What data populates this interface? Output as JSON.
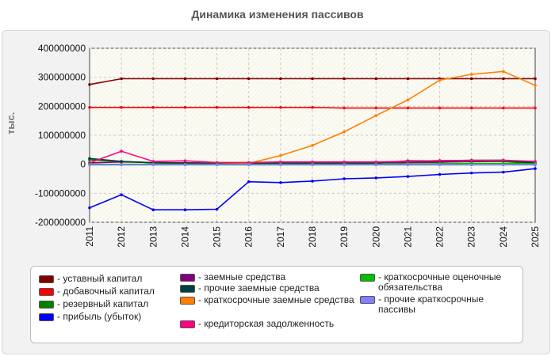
{
  "chart_data": {
    "type": "line",
    "title": "Динамика изменения пассивов",
    "ylabel": "тыс.",
    "xlabel": "",
    "x": [
      "2011",
      "2012",
      "2013",
      "2014",
      "2015",
      "2016",
      "2017",
      "2018",
      "2019",
      "2020",
      "2021",
      "2022",
      "2023",
      "2024",
      "2025"
    ],
    "ylim": [
      -200000000,
      400000000
    ],
    "yticks": [
      400000000,
      300000000,
      200000000,
      100000000,
      0,
      -100000000,
      -200000000
    ],
    "ytick_labels": [
      "400000000",
      "300000000",
      "200000000",
      "100000000",
      "0",
      "-100000000",
      "-200000000"
    ],
    "grid": true,
    "legend_position": "bottom",
    "series": [
      {
        "name": "- уставный капитал",
        "color": "#800000",
        "values": [
          275000000,
          295000000,
          295000000,
          295000000,
          295000000,
          295000000,
          295000000,
          295000000,
          295000000,
          295000000,
          295000000,
          295000000,
          295000000,
          295000000,
          295000000
        ]
      },
      {
        "name": "- добавочный капитал",
        "color": "#ff0000",
        "values": [
          196000000,
          196000000,
          196000000,
          196000000,
          196000000,
          196000000,
          196000000,
          196000000,
          194000000,
          194000000,
          194000000,
          194000000,
          194000000,
          194000000,
          194000000
        ]
      },
      {
        "name": "- резервный капитал",
        "color": "#008000",
        "values": [
          15000000,
          10000000,
          5000000,
          5000000,
          4000000,
          4000000,
          5000000,
          5000000,
          5000000,
          6000000,
          8000000,
          8000000,
          9000000,
          10000000,
          2000000
        ]
      },
      {
        "name": "- прибыль (убыток)",
        "color": "#0000ff",
        "values": [
          -150000000,
          -105000000,
          -157000000,
          -157000000,
          -155000000,
          -60000000,
          -63000000,
          -58000000,
          -50000000,
          -47000000,
          -42000000,
          -35000000,
          -30000000,
          -27000000,
          -15000000
        ]
      },
      {
        "name": "- заемные средства",
        "color": "#800080",
        "values": [
          5000000,
          8000000,
          6000000,
          5000000,
          4000000,
          3000000,
          4000000,
          5000000,
          5000000,
          5000000,
          6000000,
          7000000,
          10000000,
          12000000,
          8000000
        ]
      },
      {
        "name": "- прочие заемные средства",
        "color": "#004040",
        "values": [
          20000000,
          10000000,
          5000000,
          3000000,
          2000000,
          2000000,
          3000000,
          3000000,
          3000000,
          3000000,
          12000000,
          12000000,
          14000000,
          14000000,
          4000000
        ]
      },
      {
        "name": "- краткосрочные заемные средства",
        "color": "#ff8000",
        "values": [
          0,
          0,
          0,
          0,
          0,
          3000000,
          30000000,
          65000000,
          112000000,
          168000000,
          222000000,
          290000000,
          310000000,
          320000000,
          272000000
        ]
      },
      {
        "name": "- кредиторская задолженность",
        "color": "#ff0080",
        "values": [
          5000000,
          45000000,
          10000000,
          12000000,
          6000000,
          6000000,
          8000000,
          8000000,
          8000000,
          8000000,
          10000000,
          13000000,
          13000000,
          14000000,
          10000000
        ]
      },
      {
        "name": "- краткосрочные оценочные обязательства",
        "color": "#00c000",
        "values": [
          0,
          0,
          0,
          0,
          0,
          0,
          0,
          0,
          0,
          0,
          1000000,
          2000000,
          3000000,
          3000000,
          2000000
        ]
      },
      {
        "name": "- прочие краткосрочные пассивы",
        "color": "#8080ff",
        "values": [
          -2000000,
          -2000000,
          -2000000,
          -2000000,
          -2000000,
          -2000000,
          -2000000,
          -2000000,
          -2000000,
          -2000000,
          -2000000,
          -2000000,
          -2000000,
          -2000000,
          -2000000
        ]
      }
    ]
  }
}
